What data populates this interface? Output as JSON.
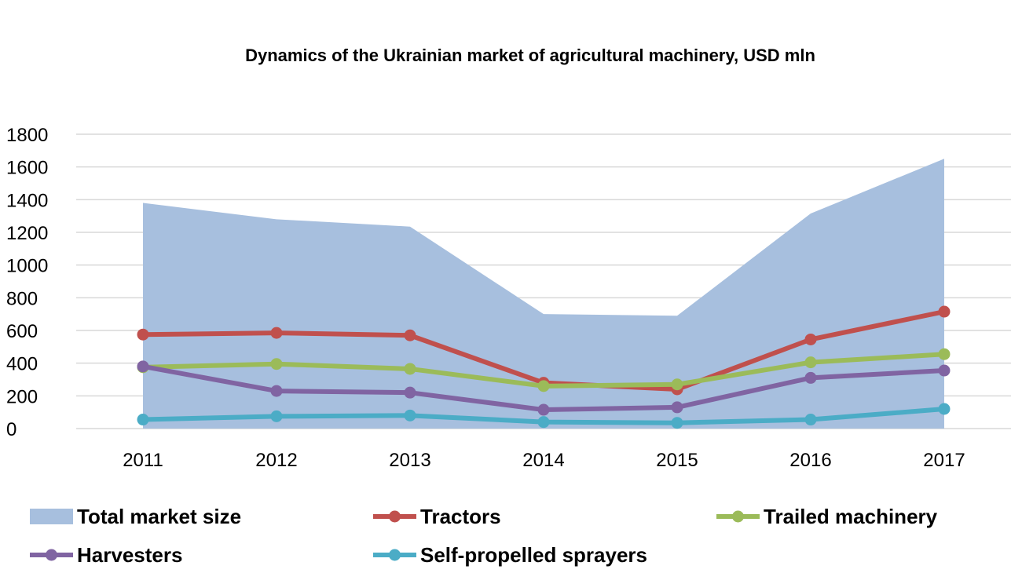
{
  "chart_data": {
    "type": "line",
    "title": "Dynamics of the Ukrainian market of agricultural machinery, USD mln",
    "xlabel": "",
    "ylabel": "",
    "categories": [
      "2011",
      "2012",
      "2013",
      "2014",
      "2015",
      "2016",
      "2017"
    ],
    "ylim": [
      0,
      1800
    ],
    "yticks": [
      0,
      200,
      400,
      600,
      800,
      1000,
      1200,
      1400,
      1600,
      1800
    ],
    "grid": true,
    "legend_position": "bottom",
    "series": [
      {
        "name": "Total market size",
        "kind": "area",
        "color": "#a7bfde",
        "values": [
          1380,
          1280,
          1235,
          700,
          690,
          1315,
          1650
        ]
      },
      {
        "name": "Tractors",
        "kind": "line",
        "color": "#c0504d",
        "values": [
          575,
          585,
          570,
          280,
          240,
          545,
          715
        ]
      },
      {
        "name": "Trailed machinery",
        "kind": "line",
        "color": "#9bbb59",
        "values": [
          375,
          395,
          365,
          260,
          270,
          405,
          455
        ]
      },
      {
        "name": "Harvesters",
        "kind": "line",
        "color": "#8064a2",
        "values": [
          380,
          230,
          220,
          115,
          130,
          310,
          355
        ]
      },
      {
        "name": "Self-propelled sprayers",
        "kind": "line",
        "color": "#4bacc6",
        "values": [
          55,
          75,
          80,
          40,
          35,
          55,
          120
        ]
      }
    ]
  }
}
